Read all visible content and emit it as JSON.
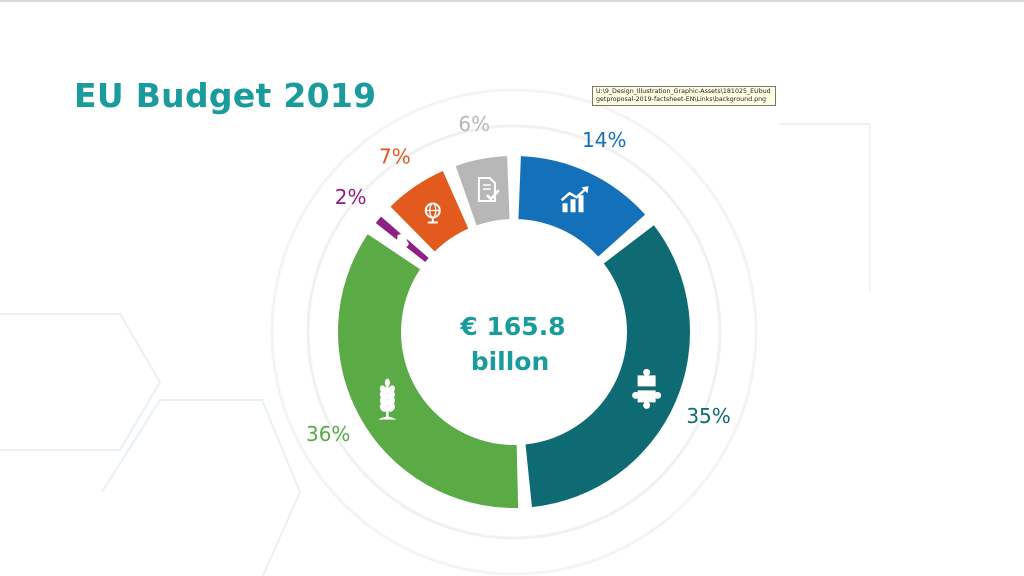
{
  "title": "EU Budget 2019",
  "tooltip": "U:\\9_Design_Illustration_Graphic-Assets\\181025_EUbudgetproposal-2019-factsheet-EN\\Links\\background.png",
  "chart_data": {
    "type": "pie",
    "donut": true,
    "center_label": [
      "€ 165.8",
      "billon"
    ],
    "slices": [
      {
        "label": "14%",
        "value": 14,
        "color": "#1470b8",
        "icon": "chart-growth-icon"
      },
      {
        "label": "35%",
        "value": 35,
        "color": "#0e6a73",
        "icon": "puzzle-icon"
      },
      {
        "label": "36%",
        "value": 36,
        "color": "#5aaa46",
        "icon": "wheat-icon"
      },
      {
        "label": "2%",
        "value": 2,
        "color": "#8e1f85",
        "icon": "security-icon"
      },
      {
        "label": "7%",
        "value": 7,
        "color": "#e35a1e",
        "icon": "globe-icon"
      },
      {
        "label": "6%",
        "value": 6,
        "color": "#b7b7b7",
        "icon": "document-check-icon"
      }
    ]
  }
}
